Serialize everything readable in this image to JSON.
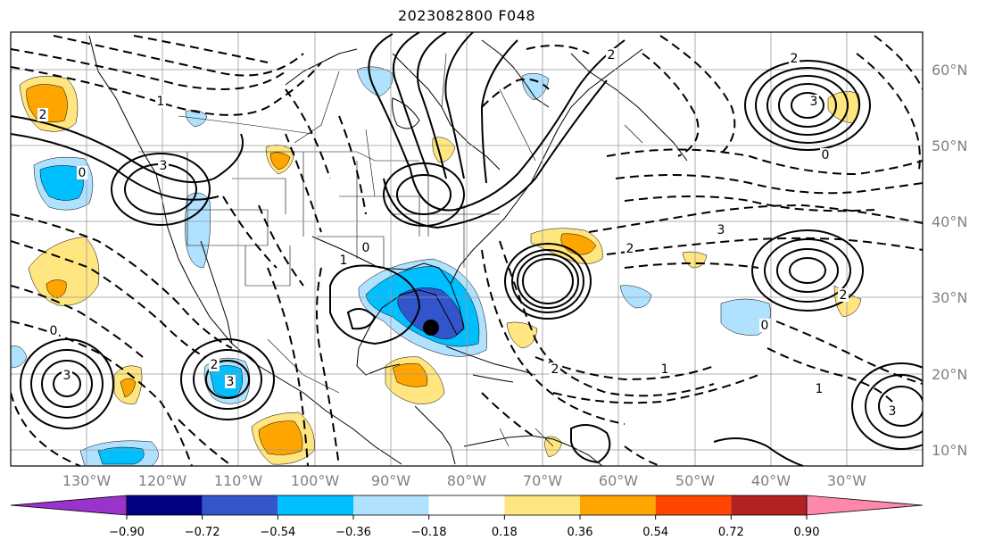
{
  "title": "2023082800 F048",
  "map": {
    "lon_ticks": [
      "130°W",
      "120°W",
      "110°W",
      "100°W",
      "90°W",
      "80°W",
      "70°W",
      "60°W",
      "50°W",
      "40°W",
      "30°W"
    ],
    "lat_ticks": [
      "60°N",
      "50°N",
      "40°N",
      "30°N",
      "20°N",
      "10°N"
    ],
    "marker": "storm-center-dot"
  },
  "colorbar": {
    "colors": [
      "#9933cc",
      "#000080",
      "#3355cc",
      "#00bfff",
      "#b0e2ff",
      "#ffffff",
      "#ffe680",
      "#ffa500",
      "#ff4500",
      "#b22222",
      "#ff88aa"
    ],
    "labels": [
      "−0.90",
      "−0.72",
      "−0.54",
      "−0.36",
      "−0.18",
      "0.18",
      "0.36",
      "0.54",
      "0.72",
      "0.90"
    ],
    "extend": "both"
  },
  "contour_labels": [
    {
      "t": "1"
    },
    {
      "t": "3"
    },
    {
      "t": "2"
    },
    {
      "t": "0"
    },
    {
      "t": "3"
    },
    {
      "t": "2"
    },
    {
      "t": "3"
    },
    {
      "t": "0"
    },
    {
      "t": "2"
    },
    {
      "t": "3"
    },
    {
      "t": "2"
    },
    {
      "t": "0"
    },
    {
      "t": "3"
    },
    {
      "t": "2"
    },
    {
      "t": "0"
    },
    {
      "t": "1"
    },
    {
      "t": "2"
    },
    {
      "t": "1"
    },
    {
      "t": "3"
    },
    {
      "t": "0"
    },
    {
      "t": "1"
    },
    {
      "t": "2"
    }
  ]
}
